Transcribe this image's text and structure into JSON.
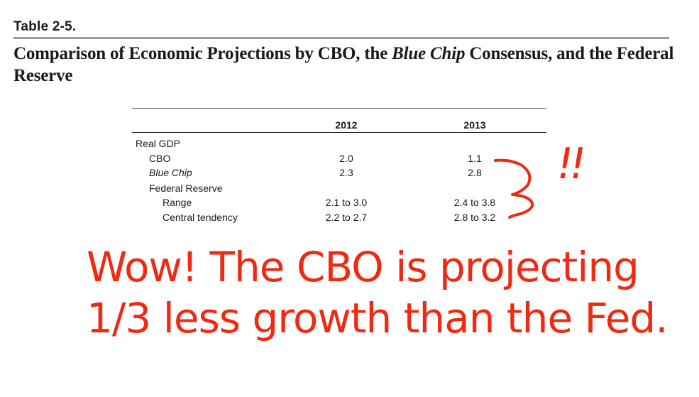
{
  "document": {
    "table_label": "Table 2-5.",
    "title_part1": "Comparison of Economic Projections by CBO, the ",
    "title_italic": "Blue Chip",
    "title_part2": " Consensus, and the Federal Reserve"
  },
  "table": {
    "columns": [
      "",
      "2012",
      "2013"
    ],
    "rows": [
      {
        "label": "Real GDP",
        "v2012": "",
        "v2013": "",
        "indent": 0,
        "italic": false
      },
      {
        "label": "CBO",
        "v2012": "2.0",
        "v2013": "1.1",
        "indent": 1,
        "italic": false
      },
      {
        "label": "Blue Chip",
        "v2012": "2.3",
        "v2013": "2.8",
        "indent": 1,
        "italic": true
      },
      {
        "label": "Federal Reserve",
        "v2012": "",
        "v2013": "",
        "indent": 1,
        "italic": false
      },
      {
        "label": "Range",
        "v2012": "2.1 to 3.0",
        "v2013": "2.4 to 3.8",
        "indent": 2,
        "italic": false
      },
      {
        "label": "Central tendency",
        "v2012": "2.2 to 2.7",
        "v2013": "2.8 to 3.2",
        "indent": 2,
        "italic": false
      }
    ]
  },
  "annotation": {
    "exclaim": "!!",
    "line1": "Wow! The CBO is projecting",
    "line2": "1/3 less growth than the Fed.",
    "color": "#ee2a12"
  }
}
